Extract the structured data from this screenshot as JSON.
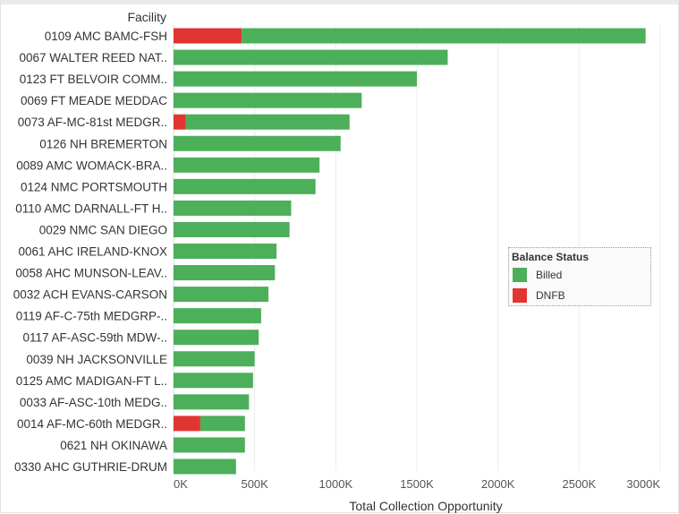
{
  "chart_data": {
    "type": "bar",
    "orientation": "horizontal",
    "stacked": true,
    "row_header": "Facility",
    "xlabel": "Total Collection Opportunity",
    "xlim": [
      0,
      3000000
    ],
    "x_ticks": [
      0,
      500000,
      1000000,
      1500000,
      2000000,
      2500000,
      3000000
    ],
    "x_tick_labels": [
      "0K",
      "500K",
      "1000K",
      "1500K",
      "2000K",
      "2500K",
      "3000K"
    ],
    "grid": true,
    "categories": [
      "0109 AMC BAMC-FSH",
      "0067 WALTER REED NAT..",
      "0123 FT BELVOIR COMM..",
      "0069 FT MEADE MEDDAC",
      "0073 AF-MC-81st MEDGR..",
      "0126 NH BREMERTON",
      "0089 AMC WOMACK-BRA..",
      "0124 NMC PORTSMOUTH",
      "0110 AMC DARNALL-FT H..",
      "0029 NMC SAN DIEGO",
      "0061 AHC IRELAND-KNOX",
      "0058 AHC MUNSON-LEAV..",
      "0032 ACH EVANS-CARSON",
      "0119 AF-C-75th MEDGRP-..",
      "0117 AF-ASC-59th MDW-..",
      "0039 NH JACKSONVILLE",
      "0125 AMC MADIGAN-FT L..",
      "0033 AF-ASC-10th MEDG..",
      "0014 AF-MC-60th MEDGR..",
      "0621 NH OKINAWA",
      "0330 AHC GUTHRIE-DRUM"
    ],
    "series": [
      {
        "name": "DNFB",
        "color": "#e03531",
        "values": [
          420000,
          0,
          0,
          0,
          75000,
          0,
          0,
          0,
          0,
          0,
          0,
          0,
          0,
          0,
          0,
          0,
          0,
          0,
          165000,
          0,
          0
        ]
      },
      {
        "name": "Billed",
        "color": "#4caf5a",
        "values": [
          2490000,
          1690000,
          1500000,
          1160000,
          1010000,
          1030000,
          900000,
          875000,
          725000,
          715000,
          635000,
          625000,
          585000,
          540000,
          525000,
          500000,
          490000,
          465000,
          275000,
          440000,
          385000
        ]
      }
    ],
    "legend": {
      "title": "Balance Status",
      "position": "right",
      "items": [
        {
          "label": "Billed",
          "color": "#4caf5a"
        },
        {
          "label": "DNFB",
          "color": "#e03531"
        }
      ]
    }
  }
}
